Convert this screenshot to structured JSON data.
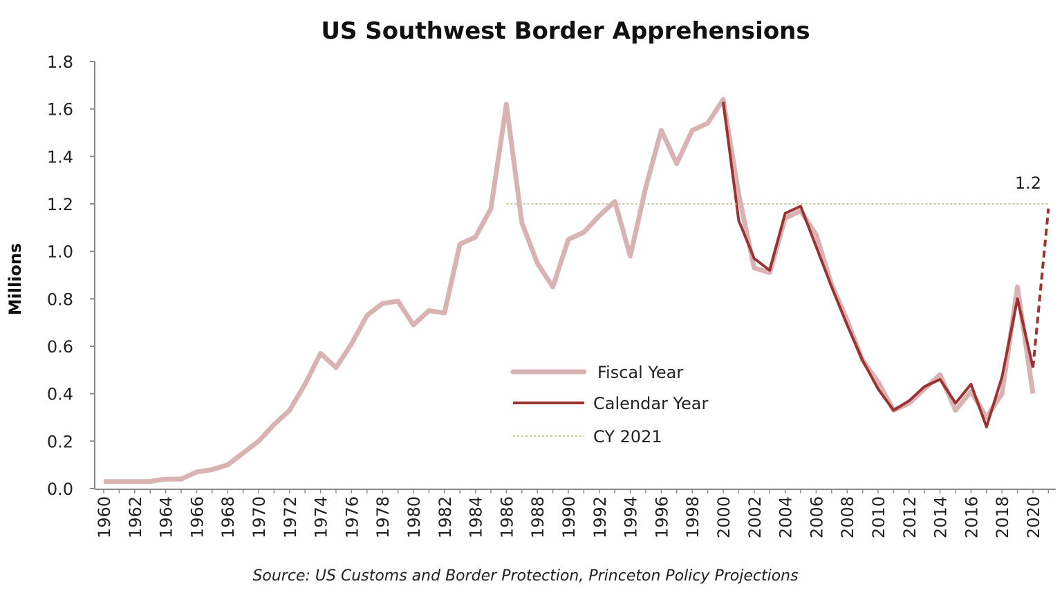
{
  "chart_data": {
    "type": "line",
    "title": "US Southwest Border Apprehensions",
    "ylabel": "Millions",
    "xlabel": "",
    "source": "Source: US Customs and Border Protection, Princeton Policy Projections",
    "ylim": [
      0,
      1.8
    ],
    "yticks": [
      "0.0",
      "0.2",
      "0.4",
      "0.6",
      "0.8",
      "1.0",
      "1.2",
      "1.4",
      "1.6",
      "1.8"
    ],
    "xlim": [
      1960,
      2021
    ],
    "xticks": [
      "1960",
      "1962",
      "1964",
      "1966",
      "1968",
      "1970",
      "1972",
      "1974",
      "1976",
      "1978",
      "1980",
      "1982",
      "1984",
      "1986",
      "1988",
      "1990",
      "1992",
      "1994",
      "1996",
      "1998",
      "2000",
      "2002",
      "2004",
      "2006",
      "2008",
      "2010",
      "2012",
      "2014",
      "2016",
      "2018",
      "2020"
    ],
    "grid": false,
    "legend_position": "center",
    "annotation": "1.2",
    "series": [
      {
        "name": "Fiscal Year",
        "color": "#d9b3b3",
        "style": "solid",
        "x": [
          1960,
          1961,
          1962,
          1963,
          1964,
          1965,
          1966,
          1967,
          1968,
          1969,
          1970,
          1971,
          1972,
          1973,
          1974,
          1975,
          1976,
          1977,
          1978,
          1979,
          1980,
          1981,
          1982,
          1983,
          1984,
          1985,
          1986,
          1987,
          1988,
          1989,
          1990,
          1991,
          1992,
          1993,
          1994,
          1995,
          1996,
          1997,
          1998,
          1999,
          2000,
          2001,
          2002,
          2003,
          2004,
          2005,
          2006,
          2007,
          2008,
          2009,
          2010,
          2011,
          2012,
          2013,
          2014,
          2015,
          2016,
          2017,
          2018,
          2019,
          2020
        ],
        "values": [
          0.03,
          0.03,
          0.03,
          0.03,
          0.04,
          0.04,
          0.07,
          0.08,
          0.1,
          0.15,
          0.2,
          0.27,
          0.33,
          0.44,
          0.57,
          0.51,
          0.61,
          0.73,
          0.78,
          0.79,
          0.69,
          0.75,
          0.74,
          1.03,
          1.06,
          1.18,
          1.62,
          1.12,
          0.95,
          0.85,
          1.05,
          1.08,
          1.15,
          1.21,
          0.98,
          1.27,
          1.51,
          1.37,
          1.51,
          1.54,
          1.64,
          1.24,
          0.93,
          0.91,
          1.14,
          1.17,
          1.07,
          0.86,
          0.71,
          0.54,
          0.45,
          0.33,
          0.36,
          0.42,
          0.48,
          0.33,
          0.41,
          0.3,
          0.4,
          0.85,
          0.4
        ]
      },
      {
        "name": "Calendar Year",
        "color": "#9b3333",
        "style": "solid",
        "x": [
          2000,
          2001,
          2002,
          2003,
          2004,
          2005,
          2006,
          2007,
          2008,
          2009,
          2010,
          2011,
          2012,
          2013,
          2014,
          2015,
          2016,
          2017,
          2018,
          2019,
          2020
        ],
        "values": [
          1.63,
          1.13,
          0.97,
          0.92,
          1.16,
          1.19,
          1.02,
          0.85,
          0.69,
          0.54,
          0.42,
          0.33,
          0.37,
          0.43,
          0.46,
          0.36,
          0.44,
          0.26,
          0.47,
          0.8,
          0.51
        ]
      },
      {
        "name": "Calendar Year projection",
        "color": "#9b3333",
        "style": "dashed",
        "x": [
          2020,
          2021
        ],
        "values": [
          0.51,
          1.18
        ]
      },
      {
        "name": "CY 2021",
        "color": "#c9c79a",
        "style": "dotted",
        "x": [
          1986,
          2021
        ],
        "values": [
          1.2,
          1.2
        ]
      }
    ],
    "legend": [
      "Fiscal Year",
      "Calendar Year",
      "CY 2021"
    ]
  }
}
